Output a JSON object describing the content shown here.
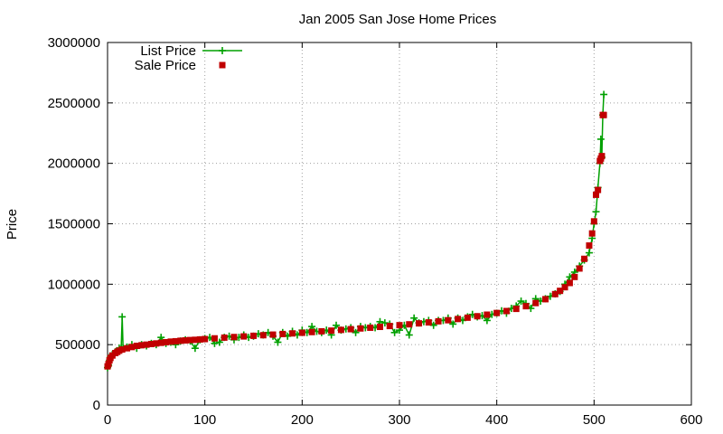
{
  "chart_data": {
    "type": "scatter",
    "title": "Jan 2005 San Jose Home Prices",
    "xlabel": "",
    "ylabel": "Price",
    "xlim": [
      0,
      600
    ],
    "ylim": [
      0,
      3000000
    ],
    "x_ticks": [
      0,
      100,
      200,
      300,
      400,
      500,
      600
    ],
    "y_ticks": [
      0,
      500000,
      1000000,
      1500000,
      2000000,
      2500000,
      3000000
    ],
    "grid": true,
    "legend_position": "top-left",
    "series": [
      {
        "name": "List Price",
        "style": "linespoints",
        "marker": "plus",
        "color": "#00a000",
        "x": [
          0,
          1,
          2,
          3,
          5,
          8,
          10,
          12,
          14,
          15,
          16,
          20,
          25,
          30,
          35,
          40,
          45,
          50,
          55,
          60,
          65,
          70,
          75,
          80,
          85,
          90,
          95,
          100,
          105,
          110,
          115,
          120,
          125,
          130,
          135,
          140,
          145,
          150,
          155,
          160,
          165,
          170,
          175,
          180,
          185,
          190,
          195,
          200,
          205,
          210,
          215,
          220,
          225,
          230,
          235,
          240,
          245,
          250,
          255,
          260,
          265,
          270,
          275,
          280,
          285,
          290,
          295,
          300,
          305,
          310,
          315,
          320,
          325,
          330,
          335,
          340,
          345,
          350,
          355,
          360,
          365,
          370,
          375,
          380,
          385,
          390,
          395,
          400,
          405,
          410,
          415,
          420,
          425,
          430,
          435,
          440,
          445,
          450,
          455,
          460,
          465,
          470,
          475,
          480,
          485,
          490,
          495,
          498,
          500,
          502,
          504,
          506,
          507,
          508,
          509,
          510
        ],
        "values": [
          310000,
          330000,
          370000,
          400000,
          420000,
          440000,
          450000,
          470000,
          470000,
          730000,
          470000,
          480000,
          500000,
          470000,
          500000,
          490000,
          510000,
          500000,
          560000,
          510000,
          520000,
          500000,
          530000,
          540000,
          530000,
          470000,
          540000,
          550000,
          560000,
          510000,
          520000,
          560000,
          570000,
          540000,
          560000,
          580000,
          560000,
          570000,
          590000,
          580000,
          600000,
          570000,
          520000,
          600000,
          570000,
          610000,
          580000,
          620000,
          600000,
          650000,
          610000,
          600000,
          620000,
          580000,
          660000,
          620000,
          630000,
          640000,
          600000,
          650000,
          640000,
          650000,
          640000,
          690000,
          680000,
          670000,
          600000,
          620000,
          660000,
          580000,
          720000,
          680000,
          690000,
          700000,
          660000,
          700000,
          700000,
          720000,
          670000,
          720000,
          700000,
          730000,
          750000,
          730000,
          740000,
          700000,
          750000,
          760000,
          780000,
          760000,
          800000,
          820000,
          860000,
          840000,
          800000,
          880000,
          860000,
          880000,
          900000,
          920000,
          940000,
          1000000,
          1060000,
          1100000,
          1150000,
          1200000,
          1260000,
          1380000,
          1500000,
          1600000,
          1800000,
          2000000,
          2200000,
          2050000,
          2400000,
          2570000
        ]
      },
      {
        "name": "Sale Price",
        "style": "points",
        "marker": "square",
        "color": "#c00000",
        "x": [
          0,
          1,
          2,
          3,
          5,
          8,
          10,
          12,
          15,
          20,
          25,
          30,
          35,
          40,
          45,
          50,
          55,
          60,
          65,
          70,
          75,
          80,
          85,
          90,
          95,
          100,
          110,
          120,
          130,
          140,
          150,
          160,
          170,
          180,
          190,
          200,
          210,
          220,
          230,
          240,
          250,
          260,
          270,
          280,
          290,
          300,
          310,
          320,
          330,
          340,
          350,
          360,
          370,
          380,
          390,
          400,
          410,
          420,
          430,
          440,
          450,
          460,
          465,
          470,
          475,
          480,
          485,
          490,
          495,
          498,
          500,
          502,
          504,
          506,
          507,
          508,
          509,
          510
        ],
        "values": [
          320000,
          340000,
          370000,
          390000,
          410000,
          430000,
          440000,
          450000,
          460000,
          470000,
          480000,
          490000,
          495000,
          500000,
          505000,
          510000,
          515000,
          520000,
          525000,
          528000,
          532000,
          535000,
          538000,
          540000,
          543000,
          546000,
          552000,
          558000,
          563000,
          568000,
          573000,
          578000,
          583000,
          588000,
          593000,
          598000,
          604000,
          610000,
          616000,
          622000,
          628000,
          634000,
          640000,
          647000,
          654000,
          661000,
          668000,
          676000,
          684000,
          693000,
          702000,
          712000,
          723000,
          735000,
          748000,
          762000,
          778000,
          796000,
          818000,
          844000,
          876000,
          918000,
          945000,
          975000,
          1010000,
          1060000,
          1130000,
          1210000,
          1320000,
          1420000,
          1520000,
          1740000,
          1780000,
          2020000,
          2040000,
          2060000,
          2400000,
          2400000
        ]
      }
    ]
  }
}
